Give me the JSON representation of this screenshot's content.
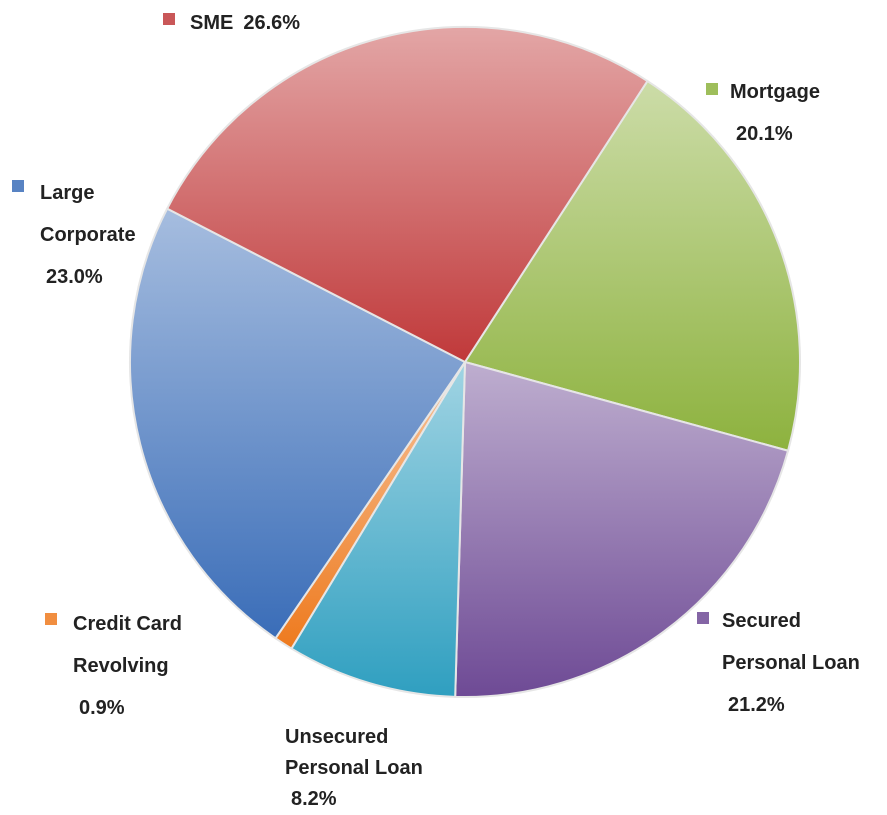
{
  "chart_data": {
    "type": "pie",
    "categories": [
      "Mortgage",
      "Secured Personal Loan",
      "Unsecured Personal Loan",
      "Credit Card Revolving",
      "Large Corporate",
      "SME"
    ],
    "values": [
      20.1,
      21.2,
      8.2,
      0.9,
      23.0,
      26.6
    ],
    "value_labels": [
      "20.1%",
      "21.2%",
      "8.2%",
      "0.9%",
      "23.0%",
      "26.6%"
    ],
    "colors": [
      "#8db23e",
      "#6e4a95",
      "#2f9fc0",
      "#ee7a1e",
      "#3a6db8",
      "#c0393a"
    ]
  }
}
